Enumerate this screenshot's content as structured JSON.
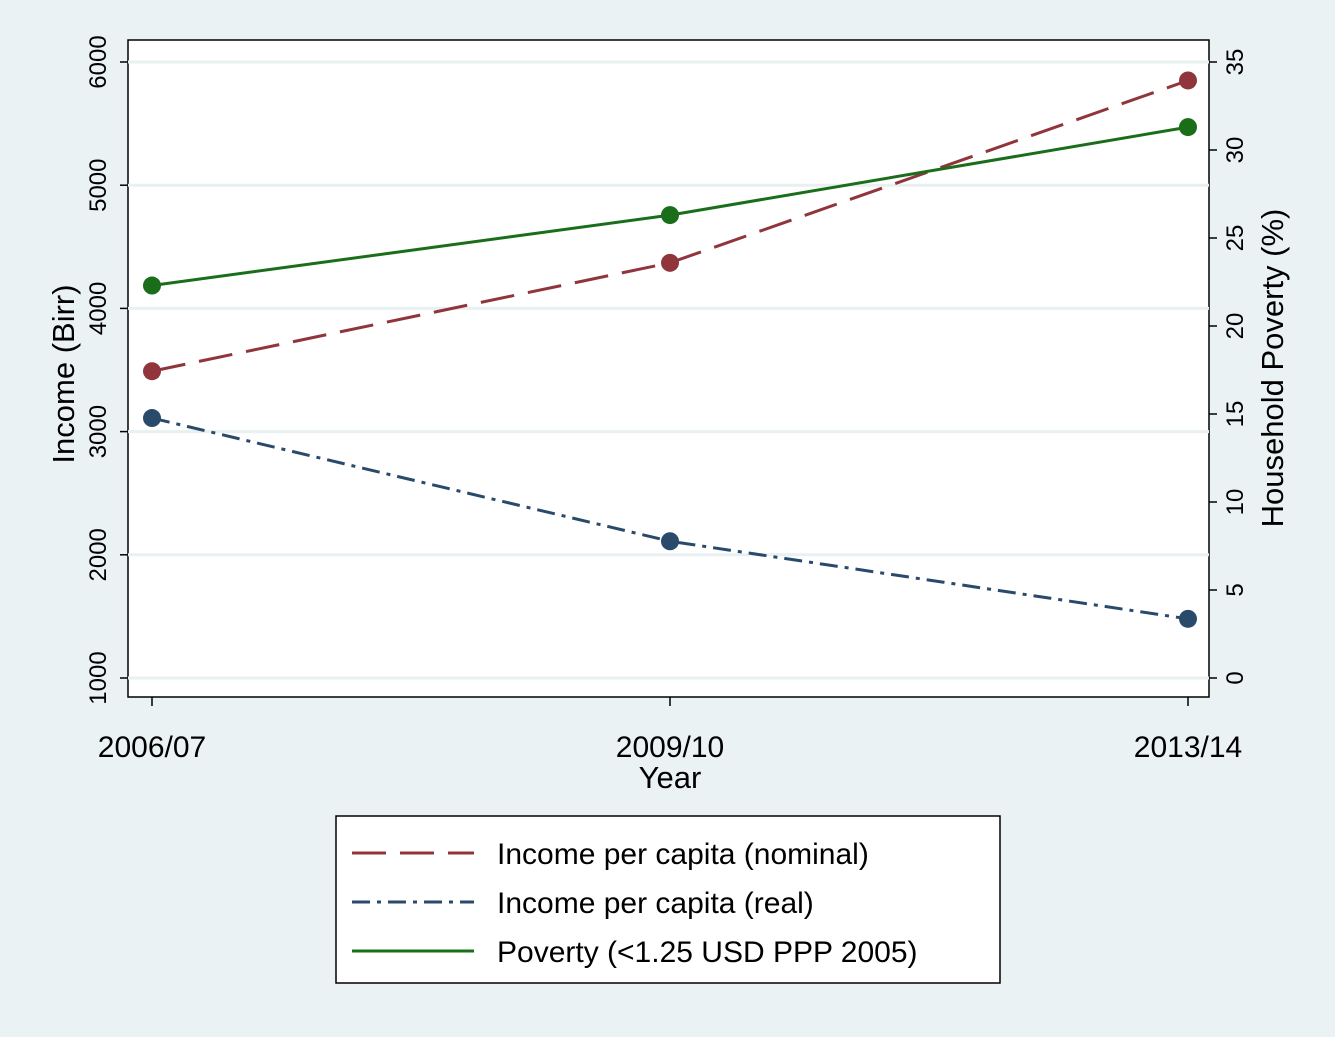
{
  "chart_data": {
    "type": "line",
    "xlabel": "Year",
    "ylabel_left": "Income (Birr)",
    "ylabel_right": "Household Poverty (%)",
    "categories": [
      "2006/07",
      "2009/10",
      "2013/14"
    ],
    "y_left_ticks": [
      "1000",
      "2000",
      "3000",
      "4000",
      "5000",
      "6000"
    ],
    "y_right_ticks": [
      "0",
      "5",
      "10",
      "15",
      "20",
      "25",
      "30",
      "35"
    ],
    "ylim_left": [
      1000,
      6000
    ],
    "ylim_right": [
      0,
      35
    ],
    "grid": true,
    "legend_position": "bottom",
    "series": [
      {
        "name": "Income per capita (nominal)",
        "axis": "left",
        "values": [
          3490,
          4370,
          5850
        ],
        "color": "#90353b",
        "dash": "dashed"
      },
      {
        "name": "Income per capita (real)",
        "axis": "left",
        "values": [
          3110,
          2110,
          1480
        ],
        "color": "#2a4a6b",
        "dash": "dashdot"
      },
      {
        "name": "Poverty (<1.25 USD PPP 2005)",
        "axis": "right",
        "values": [
          22.3,
          26.3,
          31.3
        ],
        "color": "#1a6e1a",
        "dash": "solid"
      }
    ]
  }
}
